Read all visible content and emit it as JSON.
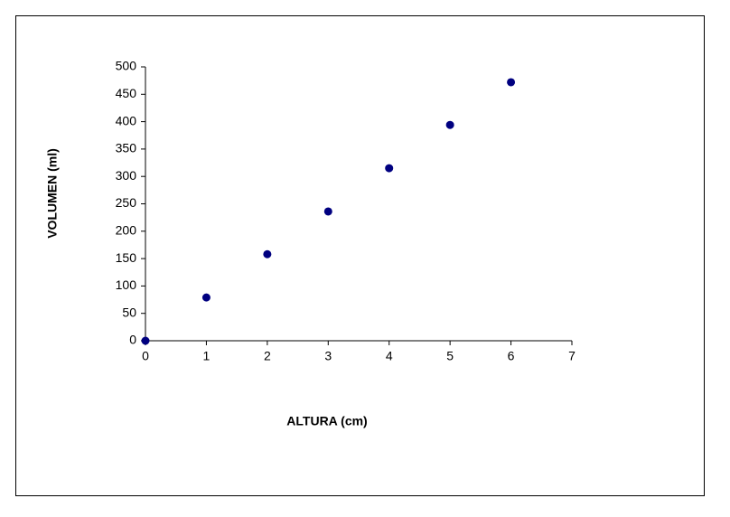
{
  "chart_data": {
    "type": "scatter",
    "x_label": "ALTURA (cm)",
    "y_label": "VOLUMEN (ml)",
    "series": [
      {
        "color": "#000080",
        "x": [
          0,
          1,
          2,
          3,
          4,
          5,
          6
        ],
        "values": [
          0,
          79,
          158,
          236,
          315,
          394,
          472
        ]
      }
    ],
    "xlim": [
      0,
      7
    ],
    "xticks": [
      0,
      1,
      2,
      3,
      4,
      5,
      6,
      7
    ],
    "ylim": [
      0,
      500
    ],
    "yticks": [
      0,
      50,
      100,
      150,
      200,
      250,
      300,
      350,
      400,
      450,
      500
    ],
    "grid": false
  }
}
